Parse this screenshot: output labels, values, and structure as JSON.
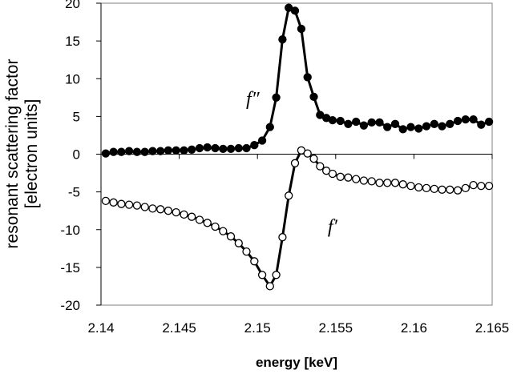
{
  "chart_data": {
    "type": "line",
    "title": "",
    "xlabel": "energy [keV]",
    "ylabel_lines": [
      "resonant scattering factor",
      "[electron units]"
    ],
    "xlim": [
      2.14,
      2.165
    ],
    "ylim": [
      -20,
      20
    ],
    "x_ticks": [
      2.14,
      2.145,
      2.15,
      2.155,
      2.16,
      2.165
    ],
    "x_tick_labels": [
      "2.14",
      "2.145",
      "2.15",
      "2.155",
      "2.16",
      "2.165"
    ],
    "y_ticks": [
      20,
      15,
      10,
      5,
      0,
      -5,
      -10,
      -15,
      -20
    ],
    "y_tick_labels": [
      "20",
      "15",
      "10",
      "5",
      "0",
      "-5",
      "-10",
      "-15",
      "-20"
    ],
    "grid": false,
    "legend": "none",
    "annotations": [
      {
        "text": "f″",
        "x": 2.1497,
        "y": 6.5
      },
      {
        "text": "f′",
        "x": 2.1548,
        "y": -10.4
      }
    ],
    "series": [
      {
        "name": "",
        "marker": "filled-circle",
        "color": "#000000",
        "x": [
          2.1403,
          2.1408,
          2.1413,
          2.1418,
          2.1423,
          2.1428,
          2.1433,
          2.1438,
          2.1443,
          2.1448,
          2.1453,
          2.1458,
          2.1463,
          2.1468,
          2.1473,
          2.1478,
          2.1483,
          2.1488,
          2.1493,
          2.1498,
          2.1503,
          2.1508,
          2.1512,
          2.1516,
          2.152,
          2.1524,
          2.1528,
          2.1532,
          2.1536,
          2.154,
          2.1544,
          2.1548,
          2.1553,
          2.1558,
          2.1563,
          2.1568,
          2.1573,
          2.1578,
          2.1583,
          2.1588,
          2.1593,
          2.1598,
          2.1603,
          2.1608,
          2.1613,
          2.1618,
          2.1623,
          2.1628,
          2.1633,
          2.1638,
          2.1643,
          2.1648
        ],
        "y": [
          0.1,
          0.3,
          0.3,
          0.4,
          0.3,
          0.3,
          0.4,
          0.4,
          0.5,
          0.5,
          0.5,
          0.6,
          0.8,
          0.9,
          0.8,
          0.7,
          0.7,
          0.8,
          0.8,
          1.2,
          1.8,
          3.6,
          7.5,
          15.2,
          19.4,
          19.0,
          16.6,
          10.2,
          7.6,
          5.2,
          4.8,
          4.5,
          4.4,
          4.0,
          4.3,
          3.8,
          4.2,
          4.2,
          3.6,
          4.0,
          3.3,
          3.6,
          3.4,
          3.7,
          4.0,
          3.7,
          4.0,
          4.4,
          4.6,
          4.6,
          3.9,
          4.3
        ]
      },
      {
        "name": "",
        "marker": "open-circle",
        "color": "#000000",
        "x": [
          2.1403,
          2.1408,
          2.1413,
          2.1418,
          2.1423,
          2.1428,
          2.1433,
          2.1438,
          2.1443,
          2.1448,
          2.1453,
          2.1458,
          2.1463,
          2.1468,
          2.1473,
          2.1478,
          2.1483,
          2.1488,
          2.1493,
          2.1498,
          2.1503,
          2.1508,
          2.1512,
          2.1516,
          2.152,
          2.1524,
          2.1528,
          2.1532,
          2.1536,
          2.154,
          2.1544,
          2.1548,
          2.1553,
          2.1558,
          2.1563,
          2.1568,
          2.1573,
          2.1578,
          2.1583,
          2.1588,
          2.1593,
          2.1598,
          2.1603,
          2.1608,
          2.1613,
          2.1618,
          2.1623,
          2.1628,
          2.1633,
          2.1638,
          2.1643,
          2.1648
        ],
        "y": [
          -6.2,
          -6.4,
          -6.6,
          -6.7,
          -6.8,
          -7.0,
          -7.2,
          -7.3,
          -7.5,
          -7.7,
          -8.0,
          -8.3,
          -8.7,
          -9.1,
          -9.6,
          -10.2,
          -10.9,
          -11.8,
          -12.9,
          -14.2,
          -16.0,
          -17.5,
          -16.0,
          -11.0,
          -5.5,
          -1.2,
          0.5,
          0.1,
          -0.6,
          -1.6,
          -2.2,
          -2.6,
          -3.0,
          -3.1,
          -3.3,
          -3.5,
          -3.6,
          -3.8,
          -3.8,
          -3.8,
          -4.0,
          -4.2,
          -4.4,
          -4.5,
          -4.6,
          -4.7,
          -4.7,
          -4.8,
          -4.5,
          -4.1,
          -4.2,
          -4.2
        ]
      }
    ]
  }
}
